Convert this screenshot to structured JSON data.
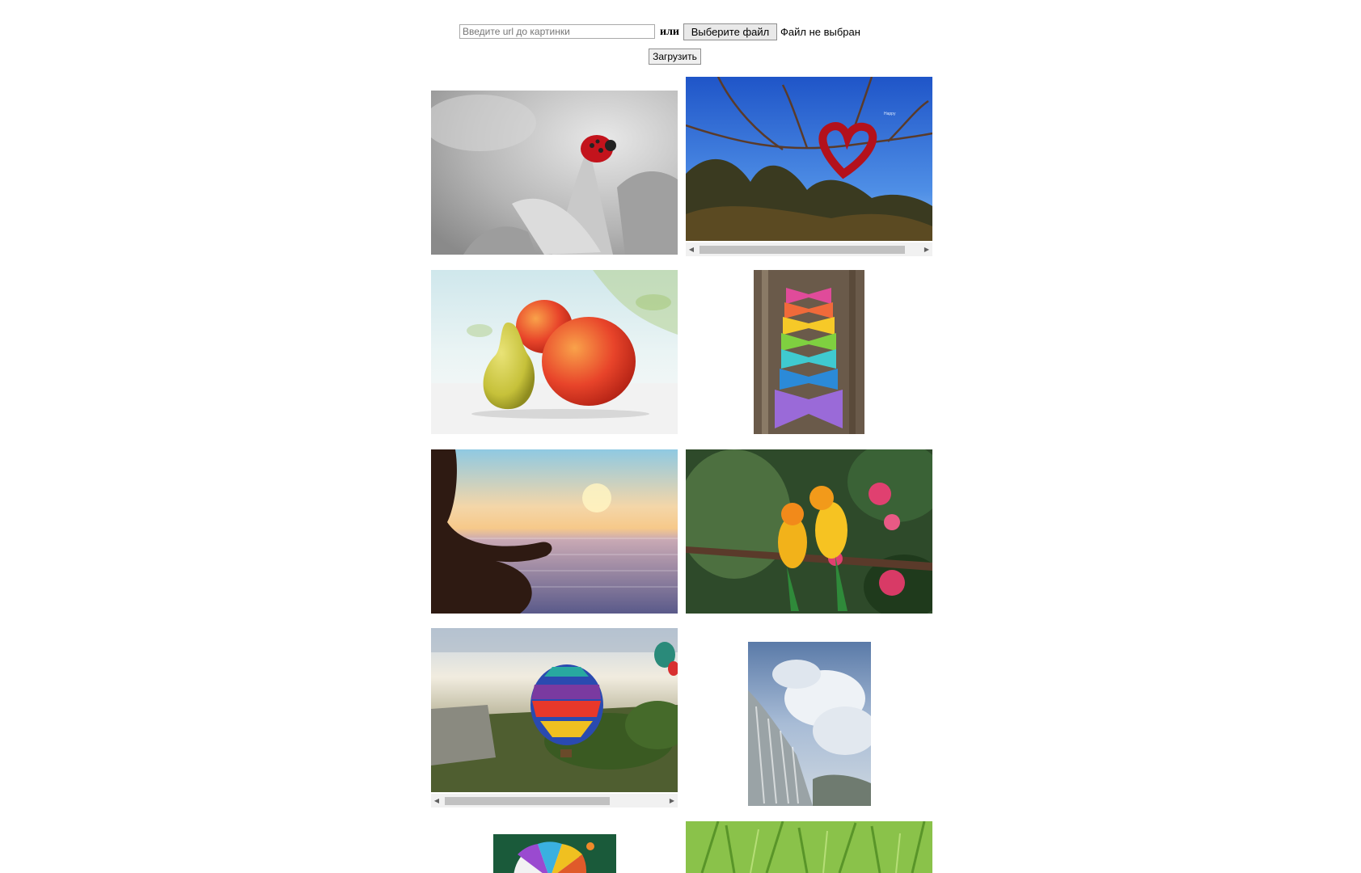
{
  "form": {
    "url_placeholder": "Введите url до картинки",
    "or_label": "или",
    "choose_file_label": "Выберите файл",
    "no_file_label": "Файл не выбран",
    "upload_label": "Загрузить"
  },
  "gallery": {
    "images": [
      {
        "subject": "ladybug on flower (black and white)"
      },
      {
        "subject": "red heart wreath on tree branches"
      },
      {
        "subject": "apple and pear"
      },
      {
        "subject": "rainbow paper bows"
      },
      {
        "subject": "meditation silhouette at sunset sea"
      },
      {
        "subject": "two yellow parrots"
      },
      {
        "subject": "hot air balloons over city"
      },
      {
        "subject": "waterfall under cloudy sky"
      },
      {
        "subject": "colorful lime slice splash"
      },
      {
        "subject": "green grass close-up"
      }
    ]
  }
}
